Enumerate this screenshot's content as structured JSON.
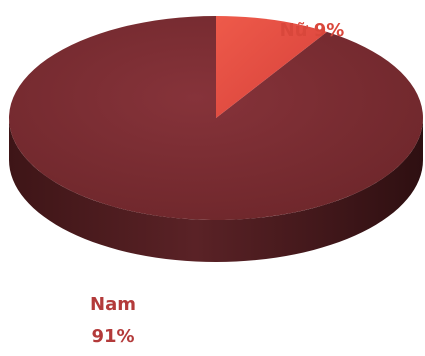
{
  "chart_data": {
    "type": "pie",
    "categories": [
      "Nam",
      "Nữ"
    ],
    "values": [
      91,
      9
    ],
    "labels": [
      {
        "name": "Nam",
        "value_text": "91%"
      },
      {
        "name": "Nữ",
        "value_text": "9%"
      }
    ],
    "colors": {
      "Nam": "#7a2b2f",
      "Nữ": "#e04a3e",
      "label_nam": "#b33a3a",
      "label_nu": "#d9473b"
    },
    "style": "3d",
    "legend": "none"
  }
}
